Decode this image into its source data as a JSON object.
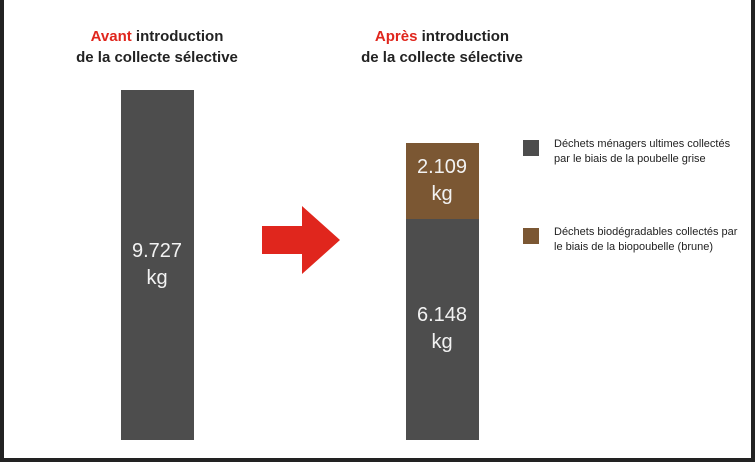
{
  "chart_data": {
    "type": "stacked-bar",
    "categories": [
      "Avant",
      "Après"
    ],
    "category_titles": [
      [
        "introduction",
        "de la collecte sélective"
      ],
      [
        "introduction",
        "de la collecte sélective"
      ]
    ],
    "series": [
      {
        "name": "Déchets ménagers ultimes collectés par le biais de la poubelle grise",
        "color": "#4d4d4d",
        "values": [
          9727,
          6148
        ],
        "value_labels": [
          "9.727 kg",
          "6.148 kg"
        ]
      },
      {
        "name": "Déchets biodégradables collectés par le biais de la biopoubelle (brune)",
        "color": "#7b5733",
        "values": [
          null,
          2109
        ],
        "value_labels": [
          null,
          "2.109 kg"
        ]
      }
    ]
  }
}
